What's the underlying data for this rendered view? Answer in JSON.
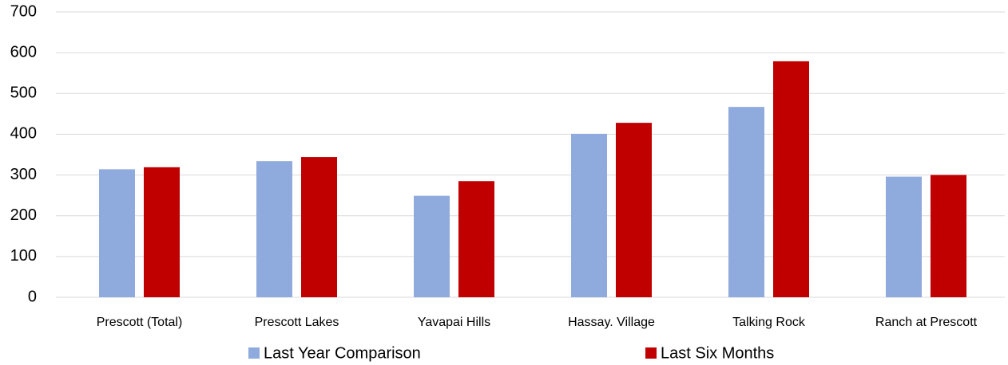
{
  "chart_data": {
    "type": "bar",
    "categories": [
      "Prescott (Total)",
      "Prescott Lakes",
      "Yavapai Hills",
      "Hassay. Village",
      "Talking Rock",
      "Ranch at Prescott"
    ],
    "series": [
      {
        "name": "Last Year Comparison",
        "color": "#8faadc",
        "values": [
          314,
          334,
          249,
          401,
          467,
          296
        ]
      },
      {
        "name": "Last Six Months",
        "color": "#c00000",
        "values": [
          319,
          344,
          285,
          428,
          579,
          300
        ]
      }
    ],
    "ylim": [
      0,
      700
    ],
    "yticks": [
      0,
      100,
      200,
      300,
      400,
      500,
      600,
      700
    ],
    "grid": true,
    "legend": "bottom"
  }
}
